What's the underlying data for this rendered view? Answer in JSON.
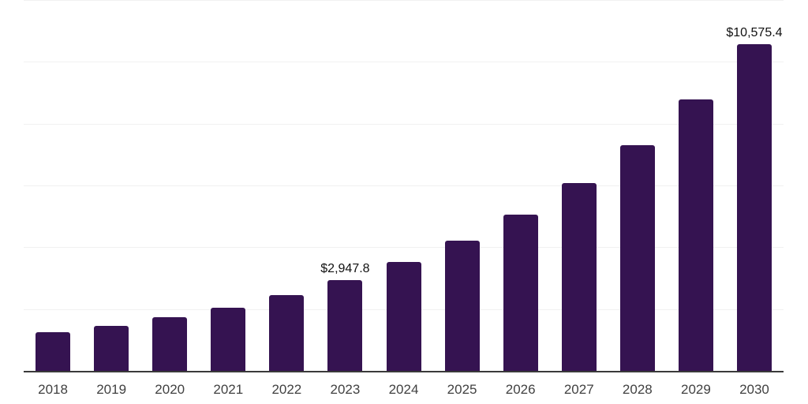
{
  "chart_data": {
    "type": "bar",
    "title": "",
    "xlabel": "",
    "ylabel": "",
    "categories": [
      "2018",
      "2019",
      "2020",
      "2021",
      "2022",
      "2023",
      "2024",
      "2025",
      "2026",
      "2027",
      "2028",
      "2029",
      "2030"
    ],
    "values": [
      1240,
      1465,
      1735,
      2040,
      2450,
      2947.8,
      3530,
      4220,
      5050,
      6070,
      7295,
      8790,
      10575.4
    ],
    "data_labels": {
      "2023": "$2,947.8",
      "2030": "$10,575.4"
    },
    "ylim": [
      0,
      12000
    ],
    "gridline_interval": 2000,
    "grid": "horizontal-only",
    "legend": "none",
    "y_axis_ticks_visible": false,
    "colors": {
      "bar": "#351351",
      "gridline": "#f1f1f1",
      "axis_line": "#3a3a3a",
      "tick_label": "#414141",
      "value_label": "#111111",
      "background": "#ffffff"
    }
  }
}
